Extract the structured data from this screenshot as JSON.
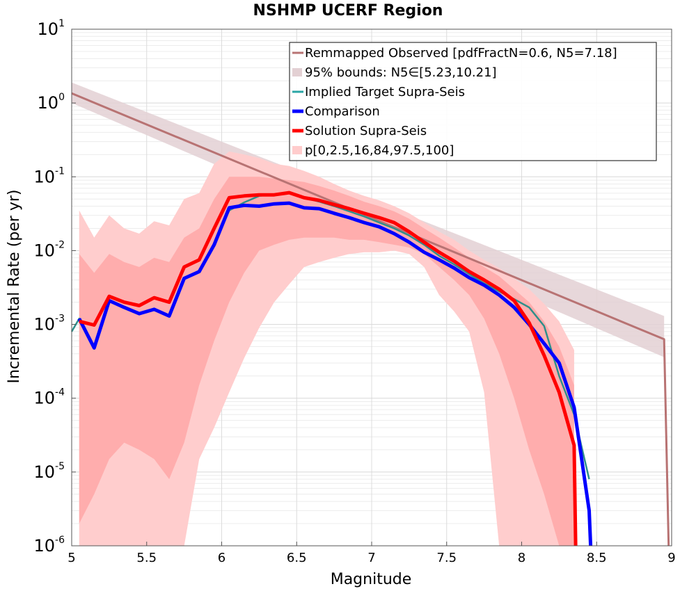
{
  "chart_data": {
    "type": "line",
    "title": "NSHMP UCERF Region",
    "xlabel": "Magnitude",
    "ylabel": "Incremental Rate (per yr)",
    "xlim": [
      5,
      9
    ],
    "ylim": [
      1e-06,
      10
    ],
    "yscale": "log",
    "grid": true,
    "legend_position": "top-right",
    "x_ticks": [
      "5",
      "5.5",
      "6",
      "6.5",
      "7",
      "7.5",
      "8",
      "8.5",
      "9"
    ],
    "y_ticks": [
      {
        "base": "10",
        "exp": "-6"
      },
      {
        "base": "10",
        "exp": "-5"
      },
      {
        "base": "10",
        "exp": "-4"
      },
      {
        "base": "10",
        "exp": "-3"
      },
      {
        "base": "10",
        "exp": "-2"
      },
      {
        "base": "10",
        "exp": "-1"
      },
      {
        "base": "10",
        "exp": "0"
      },
      {
        "base": "10",
        "exp": "1"
      }
    ],
    "series": [
      {
        "name": "Remmapped Observed [pdfFractN=0.6, N5=7.18]",
        "color": "#b87373",
        "x": [
          5.0,
          8.95,
          8.98
        ],
        "y": [
          1.35,
          0.00063,
          1e-06
        ]
      },
      {
        "name": "Implied Target Supra-Seis",
        "color": "#2f8f8a",
        "x": [
          5.0,
          5.05,
          5.15,
          5.25,
          5.35,
          5.45,
          5.55,
          5.65,
          5.75,
          5.85,
          5.95,
          6.05,
          6.15,
          6.25,
          6.35,
          6.45,
          6.55,
          6.65,
          6.75,
          6.85,
          6.95,
          7.05,
          7.15,
          7.25,
          7.35,
          7.45,
          7.55,
          7.65,
          7.75,
          7.85,
          7.95,
          8.05,
          8.15,
          8.25,
          8.35,
          8.45
        ],
        "y": [
          0.0008,
          0.0012,
          0.0005,
          0.0021,
          0.0017,
          0.0014,
          0.0016,
          0.0013,
          0.0042,
          0.0052,
          0.012,
          0.035,
          0.045,
          0.055,
          0.058,
          0.06,
          0.052,
          0.046,
          0.04,
          0.034,
          0.029,
          0.024,
          0.02,
          0.016,
          0.012,
          0.0085,
          0.0065,
          0.0048,
          0.0036,
          0.0028,
          0.0022,
          0.0017,
          0.00095,
          0.0002,
          6e-05,
          8e-06
        ]
      },
      {
        "name": "Comparison",
        "color": "#0000ff",
        "x": [
          5.05,
          5.15,
          5.25,
          5.35,
          5.45,
          5.55,
          5.65,
          5.75,
          5.85,
          5.95,
          6.05,
          6.15,
          6.25,
          6.35,
          6.45,
          6.55,
          6.65,
          6.75,
          6.85,
          6.95,
          7.05,
          7.15,
          7.25,
          7.35,
          7.45,
          7.55,
          7.65,
          7.75,
          7.85,
          7.95,
          8.05,
          8.15,
          8.25,
          8.35,
          8.45,
          8.46
        ],
        "y": [
          0.0012,
          0.00048,
          0.0021,
          0.0017,
          0.0014,
          0.0016,
          0.0013,
          0.0042,
          0.0052,
          0.012,
          0.038,
          0.041,
          0.04,
          0.043,
          0.044,
          0.038,
          0.037,
          0.032,
          0.028,
          0.024,
          0.021,
          0.017,
          0.013,
          0.0095,
          0.0075,
          0.0058,
          0.0043,
          0.0034,
          0.0025,
          0.0017,
          0.001,
          0.00055,
          0.0003,
          7.5e-05,
          3e-06,
          1e-06
        ]
      },
      {
        "name": "Solution Supra-Seis",
        "color": "#ff0000",
        "x": [
          5.05,
          5.15,
          5.25,
          5.35,
          5.45,
          5.55,
          5.65,
          5.75,
          5.85,
          5.95,
          6.05,
          6.15,
          6.25,
          6.35,
          6.45,
          6.55,
          6.65,
          6.75,
          6.85,
          6.95,
          7.05,
          7.15,
          7.25,
          7.35,
          7.45,
          7.55,
          7.65,
          7.75,
          7.85,
          7.95,
          8.05,
          8.15,
          8.25,
          8.35,
          8.36
        ],
        "y": [
          0.0011,
          0.00098,
          0.0024,
          0.002,
          0.0018,
          0.0023,
          0.002,
          0.006,
          0.0075,
          0.02,
          0.052,
          0.055,
          0.057,
          0.057,
          0.061,
          0.052,
          0.048,
          0.042,
          0.037,
          0.032,
          0.028,
          0.024,
          0.018,
          0.013,
          0.0095,
          0.0072,
          0.0052,
          0.004,
          0.003,
          0.0021,
          0.00105,
          0.00038,
          0.00012,
          2.3e-05,
          1e-06
        ]
      }
    ],
    "bands": [
      {
        "name": "95% bounds: N5∈[5.23,10.21]",
        "color": "#e3d0d3",
        "x": [
          5.0,
          8.95
        ],
        "lower": [
          1.0,
          0.00036
        ],
        "upper": [
          1.9,
          0.0013
        ]
      },
      {
        "name": "p[0,2.5,16,84,97.5,100]",
        "color": "#ffcccc",
        "x": [
          5.05,
          5.15,
          5.25,
          5.35,
          5.45,
          5.55,
          5.65,
          5.75,
          5.85,
          5.95,
          6.05,
          6.15,
          6.25,
          6.35,
          6.45,
          6.55,
          6.65,
          6.75,
          6.85,
          6.95,
          7.05,
          7.15,
          7.25,
          7.35,
          7.45,
          7.55,
          7.65,
          7.75,
          7.85,
          7.95,
          8.05,
          8.15,
          8.25,
          8.35
        ],
        "outer_lower": [
          1e-06,
          1e-06,
          1e-06,
          1e-06,
          1e-06,
          1e-06,
          1e-06,
          1e-06,
          1.5e-05,
          4e-05,
          0.00012,
          0.00035,
          0.0009,
          0.002,
          0.0035,
          0.006,
          0.007,
          0.008,
          0.009,
          0.0095,
          0.0095,
          0.01,
          0.009,
          0.006,
          0.0025,
          0.0015,
          0.0008,
          0.00012,
          1e-06,
          1e-06,
          1e-06,
          1e-06,
          1e-06,
          1e-06
        ],
        "p2_5": [
          1e-06,
          1e-06,
          1e-06,
          1e-06,
          1e-06,
          1e-06,
          1e-06,
          1e-06,
          1.5e-05,
          4e-05,
          0.00012,
          0.00035,
          0.0009,
          0.002,
          0.0035,
          0.006,
          0.007,
          0.008,
          0.009,
          0.0095,
          0.0095,
          0.01,
          0.009,
          0.006,
          0.0025,
          0.0015,
          0.0008,
          0.00012,
          1e-06,
          1e-06,
          1e-06,
          1e-06,
          1e-06,
          1e-06
        ],
        "p16": [
          2e-06,
          5e-06,
          1.5e-05,
          2.5e-05,
          2e-05,
          1.5e-05,
          8e-06,
          2.5e-05,
          0.00015,
          0.0006,
          0.002,
          0.005,
          0.01,
          0.012,
          0.014,
          0.015,
          0.015,
          0.015,
          0.014,
          0.014,
          0.013,
          0.012,
          0.011,
          0.009,
          0.006,
          0.004,
          0.0025,
          0.0012,
          0.0004,
          0.0001,
          2e-05,
          5e-06,
          1e-06,
          1e-06
        ],
        "p84": [
          0.009,
          0.005,
          0.009,
          0.007,
          0.006,
          0.008,
          0.007,
          0.015,
          0.02,
          0.05,
          0.1,
          0.1,
          0.1,
          0.095,
          0.09,
          0.085,
          0.075,
          0.065,
          0.055,
          0.046,
          0.04,
          0.034,
          0.027,
          0.02,
          0.015,
          0.011,
          0.008,
          0.006,
          0.0045,
          0.003,
          0.002,
          0.0011,
          0.0005,
          0.00015
        ],
        "outer_upper": [
          0.035,
          0.015,
          0.03,
          0.02,
          0.017,
          0.025,
          0.022,
          0.05,
          0.06,
          0.15,
          0.22,
          0.2,
          0.18,
          0.15,
          0.14,
          0.12,
          0.1,
          0.08,
          0.065,
          0.055,
          0.048,
          0.04,
          0.032,
          0.024,
          0.018,
          0.014,
          0.01,
          0.0075,
          0.0058,
          0.0042,
          0.003,
          0.0019,
          0.0011,
          0.00045
        ],
        "p97_5": [
          0.035,
          0.015,
          0.03,
          0.02,
          0.017,
          0.025,
          0.022,
          0.05,
          0.06,
          0.15,
          0.22,
          0.2,
          0.18,
          0.15,
          0.14,
          0.12,
          0.1,
          0.08,
          0.065,
          0.055,
          0.048,
          0.04,
          0.032,
          0.024,
          0.018,
          0.014,
          0.01,
          0.0075,
          0.0058,
          0.0042,
          0.003,
          0.0019,
          0.0011,
          0.00045
        ]
      }
    ],
    "legend": [
      {
        "label": "Remmapped Observed [pdfFractN=0.6, N5=7.18]",
        "color": "#b87373",
        "kind": "line"
      },
      {
        "label": "95% bounds: N5∈[5.23,10.21]",
        "color": "#e3d0d3",
        "kind": "patch"
      },
      {
        "label": "Implied Target Supra-Seis",
        "color": "#2aa6a6",
        "kind": "line"
      },
      {
        "label": "Comparison",
        "color": "#0000ff",
        "kind": "thick-line"
      },
      {
        "label": "Solution Supra-Seis",
        "color": "#ff0000",
        "kind": "thick-line"
      },
      {
        "label": "p[0,2.5,16,84,97.5,100]",
        "color": "#ffcccc",
        "kind": "patch"
      }
    ]
  }
}
